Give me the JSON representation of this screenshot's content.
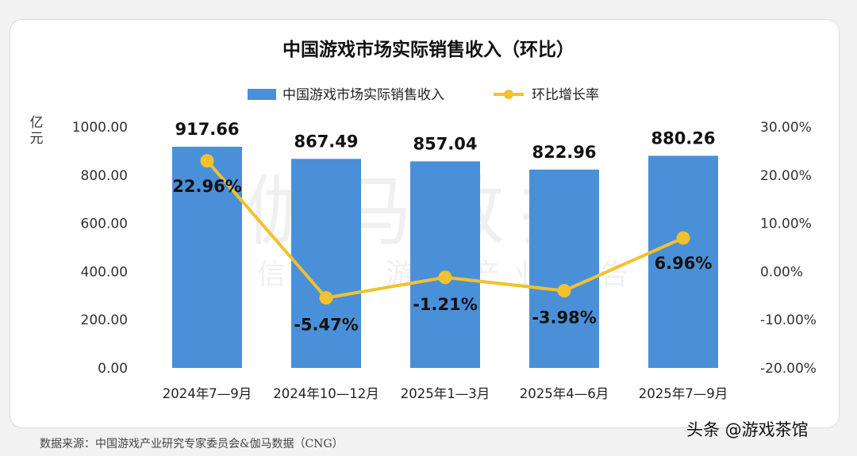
{
  "chart_data": {
    "type": "bar",
    "title": "中国游戏市场实际销售收入（环比）",
    "y_unit_label": "亿元",
    "categories": [
      "2024年7—9月",
      "2024年10—12月",
      "2025年1—3月",
      "2025年4—6月",
      "2025年7—9月"
    ],
    "series": [
      {
        "name": "中国游戏市场实际销售收入",
        "type": "bar",
        "axis": "left",
        "color": "#4a90d9",
        "values": [
          917.66,
          867.49,
          857.04,
          822.96,
          880.26
        ],
        "labels": [
          "917.66",
          "867.49",
          "857.04",
          "822.96",
          "880.26"
        ]
      },
      {
        "name": "环比增长率",
        "type": "line",
        "axis": "right",
        "color": "#f2c12e",
        "values": [
          22.96,
          -5.47,
          -1.21,
          -3.98,
          6.96
        ],
        "labels": [
          "22.96%",
          "-5.47%",
          "-1.21%",
          "-3.98%",
          "6.96%"
        ]
      }
    ],
    "ylim_left": [
      0,
      1000
    ],
    "left_ticks": [
      "0.00",
      "200.00",
      "400.00",
      "600.00",
      "800.00",
      "1000.00"
    ],
    "ylim_right": [
      -20,
      30
    ],
    "right_ticks": [
      "-20.00%",
      "-10.00%",
      "0.00%",
      "10.00%",
      "20.00%",
      "30.00%"
    ],
    "legend_position": "top-center",
    "grid": false,
    "watermark_lines": [
      "伽马数据",
      "微信号：游戏产业报告"
    ]
  },
  "source_text": "数据来源：中国游戏产业研究专家委员会&伽马数据（CNG）",
  "credit_text": "头条 @游戏茶馆"
}
